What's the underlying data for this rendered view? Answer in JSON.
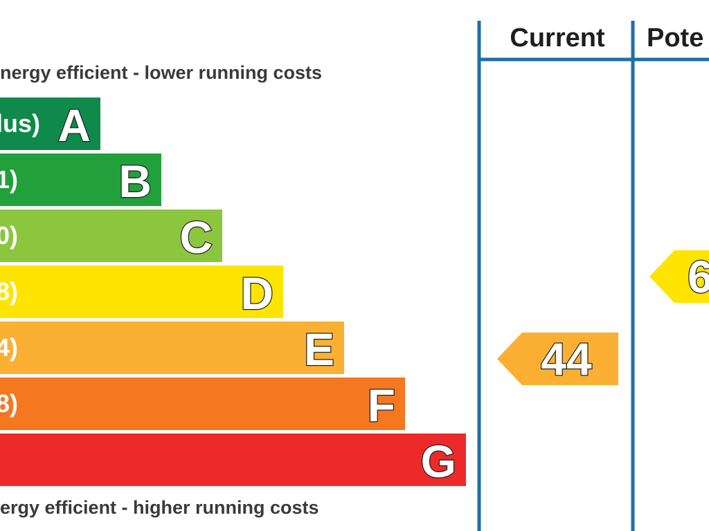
{
  "chart_data": {
    "type": "bar",
    "top_caption": "nergy efficient - lower running costs",
    "bottom_caption": "ergy efficient - higher running costs",
    "bands": [
      {
        "letter": "A",
        "range": "lus)",
        "color": "#0f8a4a"
      },
      {
        "letter": "B",
        "range": "1)",
        "color": "#22a03c"
      },
      {
        "letter": "C",
        "range": "0)",
        "color": "#8cc63e"
      },
      {
        "letter": "D",
        "range": "8)",
        "color": "#ffe400"
      },
      {
        "letter": "E",
        "range": "4)",
        "color": "#fbb033"
      },
      {
        "letter": "F",
        "range": "8)",
        "color": "#f5771f"
      },
      {
        "letter": "G",
        "range": "",
        "color": "#ed2a2a"
      }
    ],
    "columns": [
      {
        "label": "Current",
        "value": "44",
        "band": "E",
        "color": "#fbb033"
      },
      {
        "label": "Pote",
        "value": "6",
        "band": "D",
        "color": "#ffe400"
      }
    ],
    "frame_color": "#1e6fa8"
  }
}
